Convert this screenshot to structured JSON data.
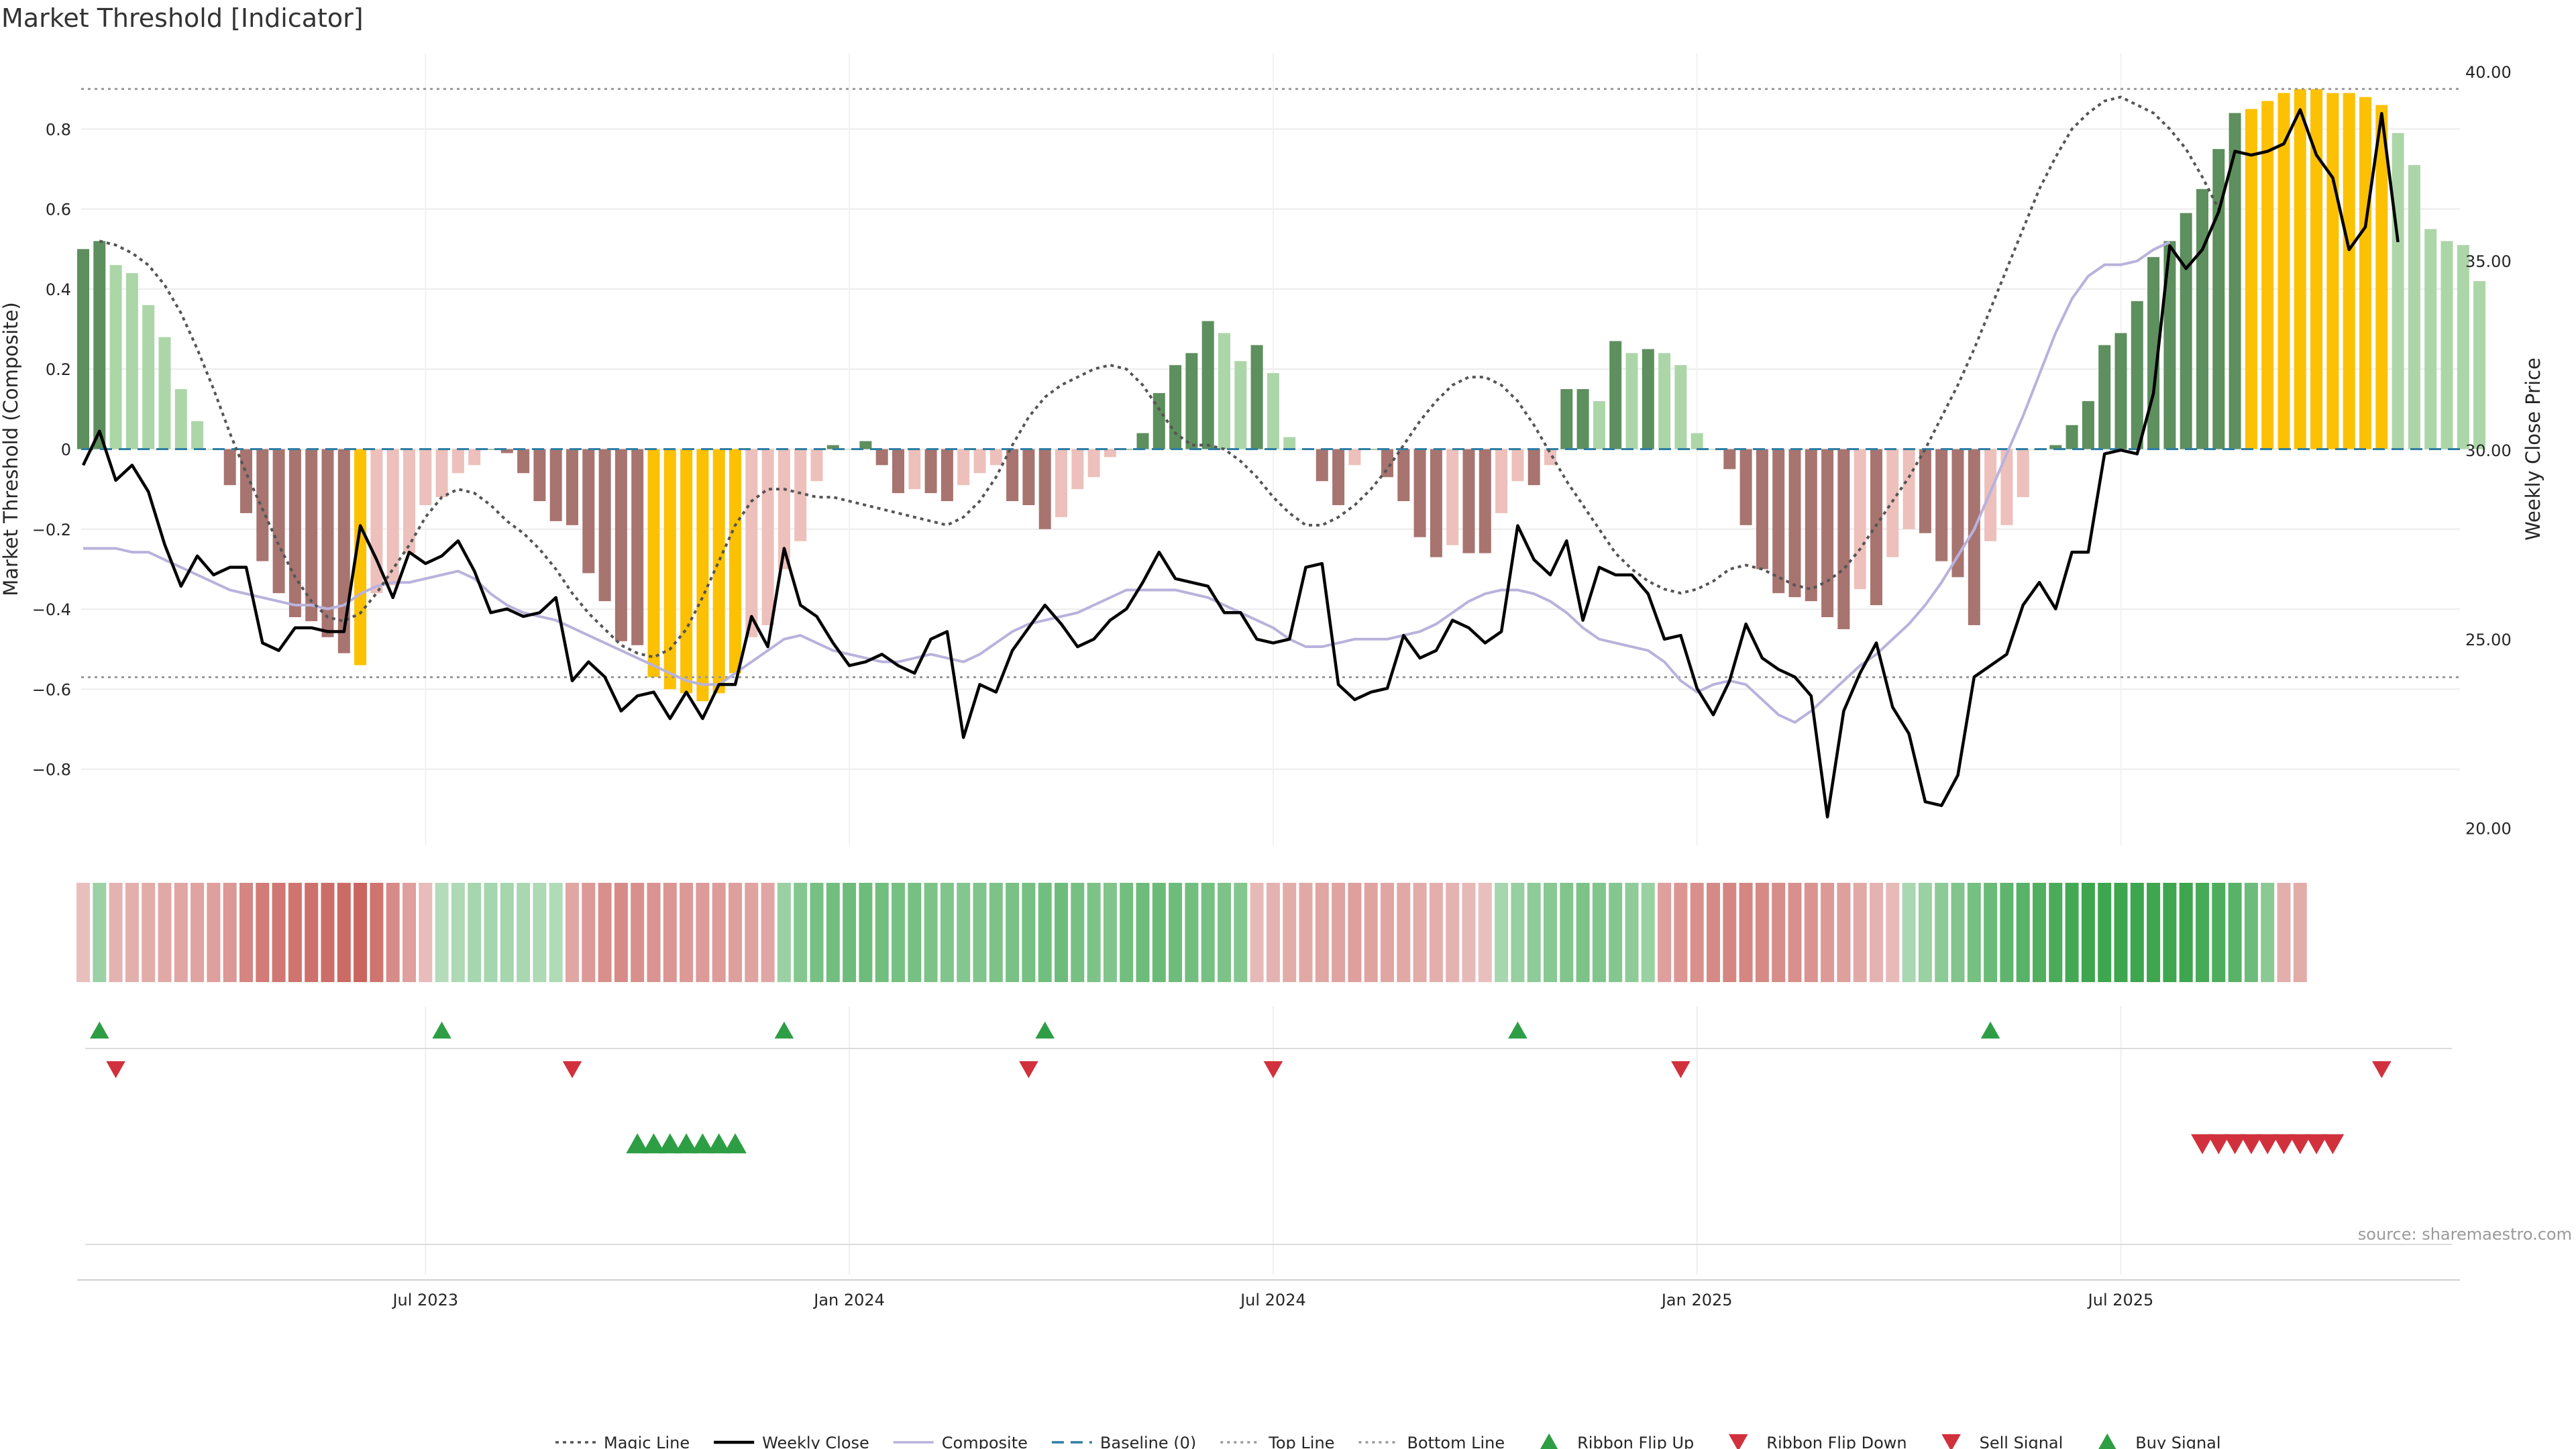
{
  "title": "Market Threshold [Indicator]",
  "source": "source: sharemaestro.com",
  "colors": {
    "strong_pos": "#5e8f5e",
    "weak_pos": "#acd6a8",
    "strong_neg": "#a87470",
    "weak_neg": "#edc0bb",
    "extreme": "#fbc102",
    "magic": "#555555",
    "weekly": "#000000",
    "composite": "#b9b2dc",
    "baseline": "#2f7ea3",
    "threshold_line": "#9a9a9a",
    "ribbon_green": "#3ea64f",
    "ribbon_red": "#c65a55",
    "buy_marker": "#2e9e45",
    "sell_marker": "#d1313d"
  },
  "chart_data": {
    "type": "bar",
    "left_axis": {
      "label": "Market Threshold (Composite)",
      "ylim": [
        -0.99,
        0.99
      ],
      "ticks": [
        0.8,
        0.6,
        0.4,
        0.2,
        0,
        -0.2,
        -0.4,
        -0.6,
        -0.8
      ],
      "tick_labels": [
        "0.8",
        "0.6",
        "0.4",
        "0.2",
        "0",
        "−0.2",
        "−0.4",
        "−0.6",
        "−0.8"
      ]
    },
    "right_axis": {
      "label": "Weekly Close Price",
      "ylim": [
        19.55,
        40.5
      ],
      "ticks": [
        40,
        35,
        30,
        25,
        20
      ],
      "tick_labels": [
        "40.00",
        "35.00",
        "30.00",
        "25.00",
        "20.00"
      ]
    },
    "x_axis": {
      "tick_labels": [
        "Jul 2023",
        "Jan 2024",
        "Jul 2024",
        "Jan 2025",
        "Jul 2025"
      ],
      "tick_week_index": [
        21,
        47,
        73,
        99,
        125
      ]
    },
    "top_line": 0.9,
    "bottom_line": -0.57,
    "baseline": 0,
    "composite": [
      0.5,
      0.52,
      0.46,
      0.44,
      0.36,
      0.28,
      0.15,
      0.07,
      0,
      -0.09,
      -0.16,
      -0.28,
      -0.36,
      -0.42,
      -0.43,
      -0.47,
      -0.51,
      -0.54,
      -0.36,
      -0.34,
      -0.26,
      -0.14,
      -0.12,
      -0.06,
      -0.04,
      0,
      -0.01,
      -0.06,
      -0.13,
      -0.18,
      -0.19,
      -0.31,
      -0.38,
      -0.48,
      -0.49,
      -0.57,
      -0.6,
      -0.61,
      -0.63,
      -0.61,
      -0.56,
      -0.47,
      -0.44,
      -0.3,
      -0.23,
      -0.08,
      0.01,
      0,
      0.02,
      -0.04,
      -0.11,
      -0.1,
      -0.11,
      -0.13,
      -0.09,
      -0.06,
      -0.04,
      -0.13,
      -0.14,
      -0.2,
      -0.17,
      -0.1,
      -0.07,
      -0.02,
      0,
      0.04,
      0.14,
      0.21,
      0.24,
      0.32,
      0.29,
      0.22,
      0.26,
      0.19,
      0.03,
      0,
      -0.08,
      -0.14,
      -0.04,
      0,
      -0.07,
      -0.13,
      -0.22,
      -0.27,
      -0.24,
      -0.26,
      -0.26,
      -0.16,
      -0.08,
      -0.09,
      -0.04,
      0.15,
      0.15,
      0.12,
      0.27,
      0.24,
      0.25,
      0.24,
      0.21,
      0.04,
      0,
      -0.05,
      -0.19,
      -0.3,
      -0.36,
      -0.37,
      -0.38,
      -0.42,
      -0.45,
      -0.35,
      -0.39,
      -0.27,
      -0.2,
      -0.21,
      -0.28,
      -0.32,
      -0.44,
      -0.23,
      -0.19,
      -0.12,
      0,
      0.01,
      0.06,
      0.12,
      0.26,
      0.29,
      0.37,
      0.48,
      0.52,
      0.59,
      0.65,
      0.75,
      0.84,
      0.85,
      0.87,
      0.89,
      0.9,
      0.9,
      0.89,
      0.89,
      0.88,
      0.86,
      0.79,
      0.71,
      0.55,
      0.52,
      0.51,
      0.42
    ],
    "weekly_close": [
      29.6,
      30.5,
      29.2,
      29.6,
      28.9,
      27.5,
      26.4,
      27.2,
      26.7,
      26.9,
      26.9,
      24.9,
      24.7,
      25.3,
      25.3,
      25.2,
      25.2,
      28.0,
      27.1,
      26.1,
      27.3,
      27.0,
      27.2,
      27.6,
      26.8,
      25.7,
      25.8,
      25.6,
      25.7,
      26.1,
      23.9,
      24.4,
      24.0,
      23.1,
      23.5,
      23.6,
      22.9,
      23.6,
      22.9,
      23.8,
      23.8,
      25.6,
      24.8,
      27.4,
      25.9,
      25.6,
      24.9,
      24.3,
      24.4,
      24.6,
      24.3,
      24.1,
      25.0,
      25.2,
      22.4,
      23.8,
      23.6,
      24.7,
      25.3,
      25.9,
      25.4,
      24.8,
      25.0,
      25.5,
      25.8,
      26.5,
      27.3,
      26.6,
      26.5,
      26.4,
      25.7,
      25.7,
      25.0,
      24.9,
      25.0,
      26.9,
      27.0,
      23.8,
      23.4,
      23.6,
      23.7,
      25.1,
      24.5,
      24.7,
      25.5,
      25.3,
      24.9,
      25.2,
      28.0,
      27.1,
      26.7,
      27.6,
      25.5,
      26.9,
      26.7,
      26.7,
      26.2,
      25.0,
      25.1,
      23.7,
      23.0,
      23.9,
      25.4,
      24.5,
      24.2,
      24.0,
      23.5,
      20.3,
      23.1,
      24.1,
      24.9,
      23.2,
      22.5,
      20.7,
      20.6,
      21.4,
      24.0,
      24.3,
      24.6,
      25.9,
      26.5,
      25.8,
      27.3,
      27.3,
      29.9,
      30.0,
      29.9,
      31.5,
      35.4,
      34.8,
      35.3,
      36.3,
      37.9,
      37.8,
      37.9,
      38.1,
      39.0,
      37.8,
      37.2,
      35.3,
      35.9,
      38.9,
      35.5
    ],
    "magic_line": [
      0.52,
      0.51,
      0.49,
      0.46,
      0.41,
      0.34,
      0.25,
      0.15,
      0.04,
      -0.06,
      -0.15,
      -0.24,
      -0.32,
      -0.38,
      -0.42,
      -0.43,
      -0.41,
      -0.36,
      -0.3,
      -0.24,
      -0.17,
      -0.12,
      -0.1,
      -0.11,
      -0.14,
      -0.18,
      -0.21,
      -0.25,
      -0.3,
      -0.36,
      -0.41,
      -0.45,
      -0.49,
      -0.51,
      -0.52,
      -0.5,
      -0.45,
      -0.37,
      -0.28,
      -0.19,
      -0.13,
      -0.1,
      -0.1,
      -0.11,
      -0.12,
      -0.12,
      -0.13,
      -0.14,
      -0.15,
      -0.16,
      -0.17,
      -0.18,
      -0.19,
      -0.17,
      -0.13,
      -0.07,
      0.01,
      0.08,
      0.13,
      0.16,
      0.18,
      0.2,
      0.21,
      0.2,
      0.16,
      0.1,
      0.04,
      0.01,
      0.01,
      0.0,
      -0.03,
      -0.07,
      -0.12,
      -0.16,
      -0.19,
      -0.19,
      -0.17,
      -0.14,
      -0.1,
      -0.05,
      0.01,
      0.07,
      0.12,
      0.16,
      0.18,
      0.18,
      0.16,
      0.12,
      0.06,
      -0.01,
      -0.08,
      -0.14,
      -0.2,
      -0.26,
      -0.3,
      -0.33,
      -0.35,
      -0.36,
      -0.35,
      -0.33,
      -0.3,
      -0.29,
      -0.3,
      -0.32,
      -0.34,
      -0.35,
      -0.33,
      -0.3,
      -0.25,
      -0.19,
      -0.13,
      -0.07,
      0.0,
      0.08,
      0.16,
      0.25,
      0.35,
      0.45,
      0.55,
      0.65,
      0.73,
      0.8,
      0.84,
      0.87,
      0.88,
      0.86,
      0.84,
      0.8,
      0.75,
      0.68,
      0.6
    ],
    "magic_line_start_week": 1,
    "composite_line": [
      27.4,
      27.4,
      27.4,
      27.3,
      27.3,
      27.1,
      26.9,
      26.7,
      26.5,
      26.3,
      26.2,
      26.1,
      26.0,
      25.9,
      25.9,
      25.8,
      25.9,
      26.2,
      26.4,
      26.5,
      26.5,
      26.6,
      26.7,
      26.8,
      26.6,
      26.2,
      25.9,
      25.7,
      25.6,
      25.5,
      25.3,
      25.1,
      24.9,
      24.7,
      24.5,
      24.3,
      24.1,
      23.9,
      23.8,
      23.8,
      24.1,
      24.4,
      24.7,
      25.0,
      25.1,
      24.9,
      24.7,
      24.6,
      24.5,
      24.4,
      24.4,
      24.5,
      24.6,
      24.5,
      24.4,
      24.6,
      24.9,
      25.2,
      25.4,
      25.5,
      25.6,
      25.7,
      25.9,
      26.1,
      26.3,
      26.3,
      26.3,
      26.3,
      26.2,
      26.1,
      25.9,
      25.7,
      25.5,
      25.3,
      25.0,
      24.8,
      24.8,
      24.9,
      25.0,
      25.0,
      25.0,
      25.1,
      25.2,
      25.4,
      25.7,
      26.0,
      26.2,
      26.3,
      26.3,
      26.2,
      26.0,
      25.7,
      25.3,
      25.0,
      24.9,
      24.8,
      24.7,
      24.4,
      23.9,
      23.6,
      23.8,
      23.9,
      23.8,
      23.4,
      23.0,
      22.8,
      23.1,
      23.5,
      23.9,
      24.3,
      24.6,
      25.0,
      25.4,
      25.9,
      26.5,
      27.2,
      27.9,
      28.9,
      29.9,
      30.9,
      32.0,
      33.1,
      34.0,
      34.6,
      34.9,
      34.9,
      35.0,
      35.3,
      35.5
    ],
    "composite_line_start_week": 0,
    "ribbon": [
      -0.22,
      0.35,
      -0.3,
      -0.32,
      -0.34,
      -0.36,
      -0.38,
      -0.4,
      -0.42,
      -0.47,
      -0.58,
      -0.65,
      -0.68,
      -0.7,
      -0.72,
      -0.74,
      -0.76,
      -0.8,
      -0.7,
      -0.55,
      -0.42,
      -0.24,
      0.22,
      0.26,
      0.3,
      0.3,
      0.3,
      0.28,
      0.26,
      0.24,
      -0.38,
      -0.46,
      -0.52,
      -0.55,
      -0.52,
      -0.5,
      -0.48,
      -0.46,
      -0.45,
      -0.44,
      -0.42,
      -0.4,
      -0.38,
      0.36,
      0.48,
      0.55,
      0.58,
      0.6,
      0.6,
      0.58,
      0.56,
      0.55,
      0.52,
      0.5,
      0.48,
      0.5,
      0.52,
      0.54,
      0.56,
      0.58,
      0.6,
      0.55,
      0.52,
      0.5,
      0.58,
      0.6,
      0.62,
      0.6,
      0.58,
      0.56,
      0.52,
      0.48,
      -0.26,
      -0.3,
      -0.34,
      -0.36,
      -0.38,
      -0.4,
      -0.42,
      -0.4,
      -0.38,
      -0.36,
      -0.34,
      -0.32,
      -0.3,
      -0.26,
      -0.22,
      0.3,
      0.38,
      0.42,
      0.46,
      0.5,
      0.52,
      0.5,
      0.48,
      0.42,
      0.36,
      -0.42,
      -0.48,
      -0.52,
      -0.56,
      -0.58,
      -0.58,
      -0.56,
      -0.54,
      -0.52,
      -0.5,
      -0.46,
      -0.42,
      -0.36,
      -0.3,
      -0.25,
      0.28,
      0.36,
      0.44,
      0.5,
      0.56,
      0.62,
      0.68,
      0.72,
      0.76,
      0.8,
      0.84,
      0.88,
      0.9,
      0.92,
      0.94,
      0.92,
      0.9,
      0.86,
      0.82,
      0.78,
      0.72,
      0.6,
      0.45,
      -0.32,
      -0.34
    ],
    "ribbon_flip_up_week": [
      1,
      22,
      43,
      59,
      88,
      117
    ],
    "ribbon_flip_down_week": [
      2,
      30,
      58,
      73,
      98,
      141
    ],
    "sell_signal_week": [
      130,
      131,
      132,
      133,
      134,
      135,
      136,
      137,
      138
    ],
    "buy_signal_week": [
      34,
      35,
      36,
      37,
      38,
      39,
      40
    ],
    "legend": [
      {
        "label": "Magic Line",
        "kind": "dotted",
        "color": "#555555"
      },
      {
        "label": "Weekly Close",
        "kind": "solid",
        "color": "#000000"
      },
      {
        "label": "Composite",
        "kind": "solid-light",
        "color": "#b9b2dc"
      },
      {
        "label": "Baseline (0)",
        "kind": "dashed",
        "color": "#2f7ea3"
      },
      {
        "label": "Top Line",
        "kind": "dotted-light",
        "color": "#9a9a9a"
      },
      {
        "label": "Bottom Line",
        "kind": "dotted-light",
        "color": "#9a9a9a"
      },
      {
        "label": "Ribbon Flip Up",
        "kind": "tri-up",
        "color": "#2e9e45"
      },
      {
        "label": "Ribbon Flip Down",
        "kind": "tri-down",
        "color": "#d1313d"
      },
      {
        "label": "Sell Signal",
        "kind": "tri-down",
        "color": "#d1313d"
      },
      {
        "label": "Buy Signal",
        "kind": "tri-up",
        "color": "#2e9e45"
      }
    ]
  }
}
